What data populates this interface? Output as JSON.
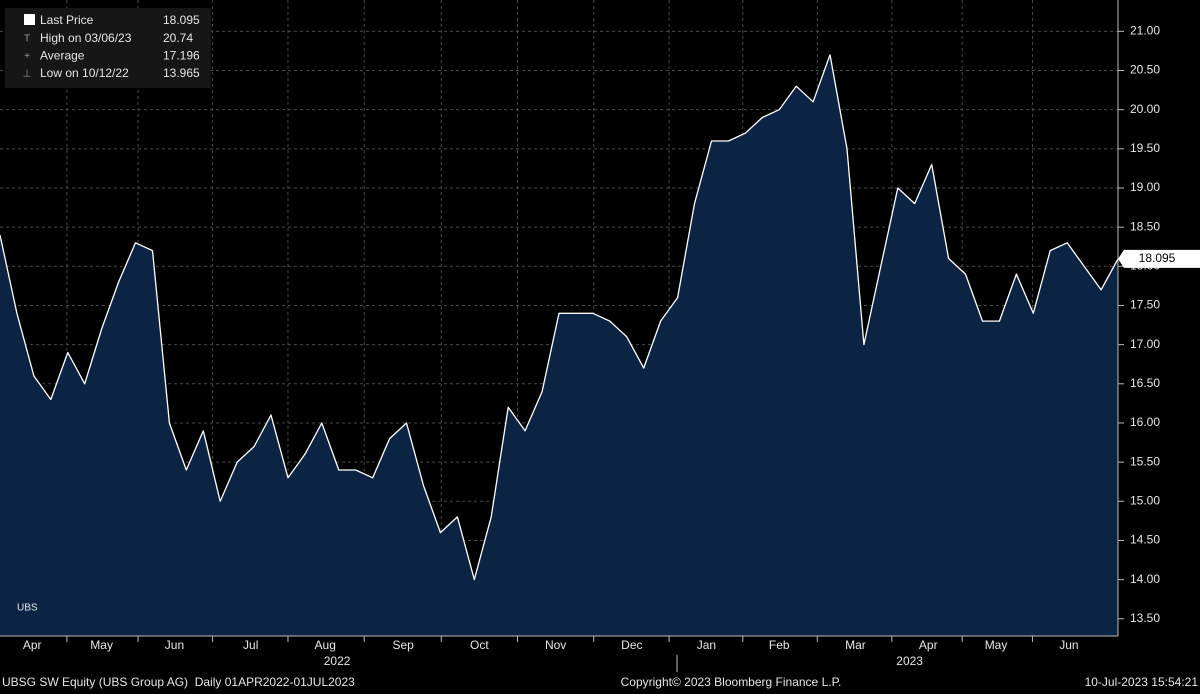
{
  "chart_data": {
    "type": "area",
    "series": [
      {
        "name": "Last Price",
        "color": "#ffffff",
        "fill": "#0c2444",
        "values": [
          18.4,
          17.4,
          16.6,
          16.3,
          16.9,
          16.5,
          17.2,
          17.8,
          18.3,
          18.2,
          16.0,
          15.4,
          15.9,
          15.0,
          15.5,
          15.7,
          16.1,
          15.3,
          15.6,
          16.0,
          15.4,
          15.4,
          15.3,
          15.8,
          16.0,
          15.2,
          14.6,
          14.8,
          14.0,
          14.8,
          16.2,
          15.9,
          16.4,
          17.4,
          17.4,
          17.4,
          17.3,
          17.1,
          16.7,
          17.3,
          17.6,
          18.8,
          19.6,
          19.6,
          19.7,
          19.9,
          20.0,
          20.3,
          20.1,
          20.7,
          19.5,
          17.0,
          18.0,
          19.0,
          18.8,
          19.3,
          18.1,
          17.9,
          17.3,
          17.3,
          17.9,
          17.4,
          18.2,
          18.3,
          18.0,
          17.7,
          18.095
        ]
      }
    ],
    "legend_stats": [
      {
        "label": "High on 03/06/23",
        "value": 20.74
      },
      {
        "label": "Average",
        "value": 17.196
      },
      {
        "label": "Low on 10/12/22",
        "value": 13.965
      }
    ],
    "xlim": [
      0,
      66
    ],
    "xticks": [
      {
        "value": 1.9,
        "label": "Apr"
      },
      {
        "value": 6,
        "label": "May"
      },
      {
        "value": 10.3,
        "label": "Jun"
      },
      {
        "value": 14.8,
        "label": "Jul"
      },
      {
        "value": 19.2,
        "label": "Aug"
      },
      {
        "value": 23.8,
        "label": "Sep"
      },
      {
        "value": 28.3,
        "label": "Oct"
      },
      {
        "value": 32.8,
        "label": "Nov"
      },
      {
        "value": 37.3,
        "label": "Dec"
      },
      {
        "value": 41.7,
        "label": "Jan"
      },
      {
        "value": 46,
        "label": "Feb"
      },
      {
        "value": 50.5,
        "label": "Mar"
      },
      {
        "value": 54.8,
        "label": "Apr"
      },
      {
        "value": 58.8,
        "label": "May"
      },
      {
        "value": 63.1,
        "label": "Jun"
      }
    ],
    "x_group_labels": [
      {
        "value": 19.9,
        "label": "2022"
      },
      {
        "value": 53.7,
        "label": "2023"
      }
    ],
    "ylim": [
      13.28,
      21.4
    ],
    "yticks": [
      {
        "value": 13.5,
        "label": "13.50"
      },
      {
        "value": 14,
        "label": "14.00"
      },
      {
        "value": 14.5,
        "label": "14.50"
      },
      {
        "value": 15,
        "label": "15.00"
      },
      {
        "value": 15.5,
        "label": "15.50"
      },
      {
        "value": 16,
        "label": "16.00"
      },
      {
        "value": 16.5,
        "label": "16.50"
      },
      {
        "value": 17,
        "label": "17.00"
      },
      {
        "value": 17.5,
        "label": "17.50"
      },
      {
        "value": 18,
        "label": "18.00"
      },
      {
        "value": 18.5,
        "label": "18.50"
      },
      {
        "value": 19,
        "label": "19.00"
      },
      {
        "value": 19.5,
        "label": "19.50"
      },
      {
        "value": 20,
        "label": "20.00"
      },
      {
        "value": 20.5,
        "label": "20.50"
      },
      {
        "value": 21,
        "label": "21.00"
      }
    ],
    "grid": true,
    "annotation": "UBS",
    "footer_left": "UBSG SW Equity (UBS Group AG)  Daily 01APR2022-01JUL2023",
    "footer_center": "Copyright© 2023 Bloomberg Finance L.P.",
    "footer_right": "10-Jul-2023 15:54:21"
  }
}
